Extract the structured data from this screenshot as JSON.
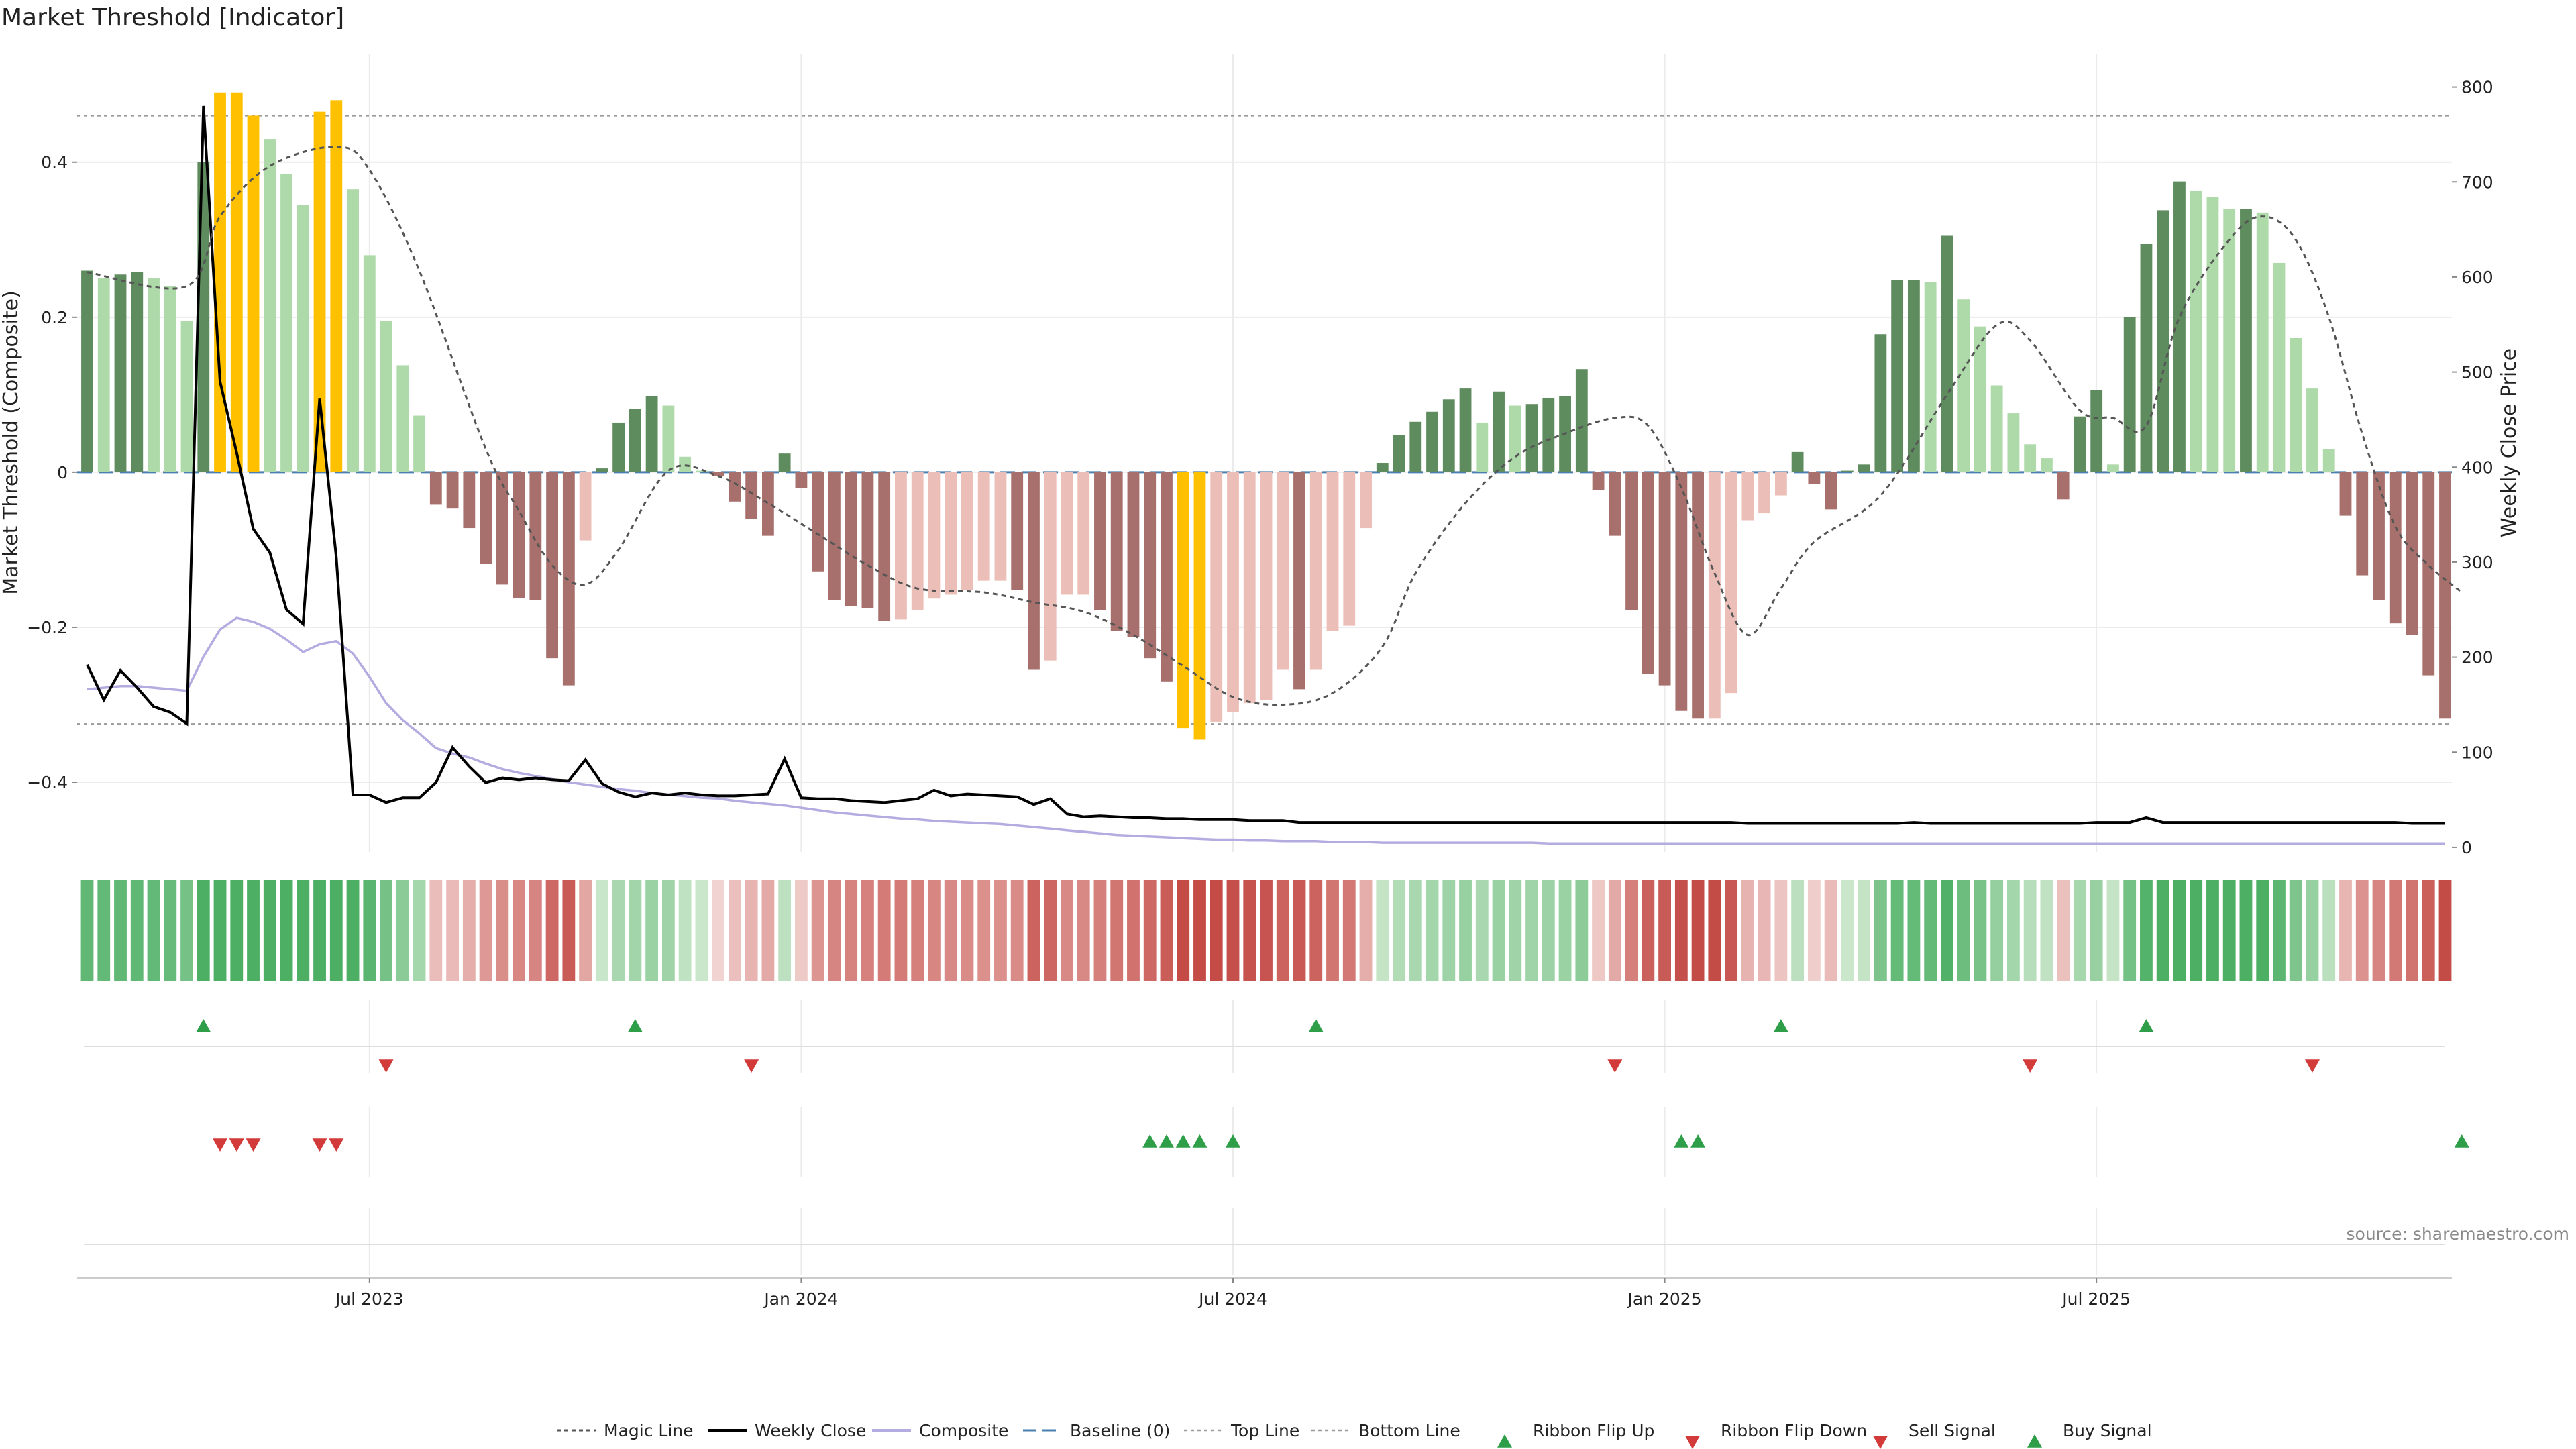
{
  "chart_data": {
    "type": "bar",
    "title": "Market Threshold [Indicator]",
    "ylabel_left": "Market Threshold (Composite)",
    "ylabel_right": "Weekly Close Price",
    "ylim_left": [
      -0.49,
      0.54
    ],
    "ylim_right": [
      -5,
      835
    ],
    "yticks_left": [
      -0.4,
      -0.2,
      0,
      0.2,
      0.4
    ],
    "yticks_left_labels": [
      "−0.4",
      "−0.2",
      "0",
      "0.2",
      "0.4"
    ],
    "yticks_right": [
      0,
      100,
      200,
      300,
      400,
      500,
      600,
      700,
      800
    ],
    "x_dates": [
      "2023-03-06",
      "2023-03-13",
      "2023-03-20",
      "2023-03-27",
      "2023-04-03",
      "2023-04-10",
      "2023-04-17",
      "2023-04-24",
      "2023-05-01",
      "2023-05-08",
      "2023-05-15",
      "2023-05-22",
      "2023-05-29",
      "2023-06-05",
      "2023-06-12",
      "2023-06-19",
      "2023-06-26",
      "2023-07-03",
      "2023-07-10",
      "2023-07-17",
      "2023-07-24",
      "2023-07-31",
      "2023-08-07",
      "2023-08-14",
      "2023-08-21",
      "2023-08-28",
      "2023-09-04",
      "2023-09-11",
      "2023-09-18",
      "2023-09-25",
      "2023-10-02",
      "2023-10-09",
      "2023-10-16",
      "2023-10-23",
      "2023-10-30",
      "2023-11-06",
      "2023-11-13",
      "2023-11-20",
      "2023-11-27",
      "2023-12-04",
      "2023-12-11",
      "2023-12-18",
      "2023-12-25",
      "2024-01-01",
      "2024-01-08",
      "2024-01-15",
      "2024-01-22",
      "2024-01-29",
      "2024-02-05",
      "2024-02-12",
      "2024-02-19",
      "2024-02-26",
      "2024-03-04",
      "2024-03-11",
      "2024-03-18",
      "2024-03-25",
      "2024-04-01",
      "2024-04-08",
      "2024-04-15",
      "2024-04-22",
      "2024-04-29",
      "2024-05-06",
      "2024-05-13",
      "2024-05-20",
      "2024-05-27",
      "2024-06-03",
      "2024-06-10",
      "2024-06-17",
      "2024-06-24",
      "2024-07-01",
      "2024-07-08",
      "2024-07-15",
      "2024-07-22",
      "2024-07-29",
      "2024-08-05",
      "2024-08-12",
      "2024-08-19",
      "2024-08-26",
      "2024-09-02",
      "2024-09-09",
      "2024-09-16",
      "2024-09-23",
      "2024-09-30",
      "2024-10-07",
      "2024-10-14",
      "2024-10-21",
      "2024-10-28",
      "2024-11-04",
      "2024-11-11",
      "2024-11-18",
      "2024-11-25",
      "2024-12-02",
      "2024-12-09",
      "2024-12-16",
      "2024-12-23",
      "2024-12-30",
      "2025-01-06",
      "2025-01-13",
      "2025-01-20",
      "2025-01-27",
      "2025-02-03",
      "2025-02-10",
      "2025-02-17",
      "2025-02-24",
      "2025-03-03",
      "2025-03-10",
      "2025-03-17",
      "2025-03-24",
      "2025-03-31",
      "2025-04-07",
      "2025-04-14",
      "2025-04-21",
      "2025-04-28",
      "2025-05-05",
      "2025-05-12",
      "2025-05-19",
      "2025-05-26",
      "2025-06-02",
      "2025-06-09",
      "2025-06-16",
      "2025-06-23",
      "2025-06-30",
      "2025-07-07",
      "2025-07-14",
      "2025-07-21",
      "2025-07-28",
      "2025-08-04",
      "2025-08-11",
      "2025-08-18",
      "2025-08-25",
      "2025-09-01",
      "2025-09-08",
      "2025-09-15",
      "2025-09-22",
      "2025-09-29",
      "2025-10-06",
      "2025-10-13",
      "2025-10-20",
      "2025-10-27",
      "2025-11-03",
      "2025-11-10"
    ],
    "composite_bars": [
      0.26,
      0.25,
      0.255,
      0.258,
      0.25,
      0.24,
      0.195,
      0.4,
      0.49,
      0.49,
      0.46,
      0.43,
      0.385,
      0.345,
      0.465,
      0.48,
      0.365,
      0.28,
      0.195,
      0.138,
      0.073,
      -0.042,
      -0.047,
      -0.072,
      -0.118,
      -0.145,
      -0.162,
      -0.165,
      -0.24,
      -0.275,
      -0.088,
      0.005,
      0.064,
      0.082,
      0.098,
      0.086,
      0.02,
      0.002,
      -0.005,
      -0.038,
      -0.06,
      -0.082,
      0.024,
      -0.02,
      -0.128,
      -0.165,
      -0.173,
      -0.175,
      -0.192,
      -0.19,
      -0.178,
      -0.163,
      -0.158,
      -0.152,
      -0.14,
      -0.14,
      -0.152,
      -0.255,
      -0.243,
      -0.158,
      -0.158,
      -0.178,
      -0.205,
      -0.213,
      -0.24,
      -0.27,
      -0.33,
      -0.345,
      -0.322,
      -0.31,
      -0.298,
      -0.294,
      -0.255,
      -0.28,
      -0.255,
      -0.205,
      -0.198,
      -0.072,
      0.012,
      0.048,
      0.065,
      0.078,
      0.094,
      0.108,
      0.064,
      0.104,
      0.086,
      0.088,
      0.096,
      0.098,
      0.133,
      -0.023,
      -0.082,
      -0.178,
      -0.26,
      -0.275,
      -0.308,
      -0.318,
      -0.318,
      -0.285,
      -0.062,
      -0.053,
      -0.03,
      0.026,
      -0.015,
      -0.048,
      0.002,
      0.01,
      0.178,
      0.248,
      0.248,
      0.245,
      0.305,
      0.223,
      0.188,
      0.112,
      0.076,
      0.036,
      0.018,
      -0.035,
      0.072,
      0.106,
      0.01,
      0.2,
      0.295,
      0.338,
      0.375,
      0.363,
      0.355,
      0.34,
      0.34,
      0.335,
      0.27,
      0.173,
      0.108,
      0.03,
      -0.056,
      -0.133,
      -0.165,
      -0.195,
      -0.21,
      -0.262,
      -0.318
    ],
    "weekly_close": [
      192,
      155,
      186,
      168,
      148,
      142,
      130,
      780,
      490,
      415,
      335,
      310,
      250,
      235,
      472,
      305,
      55,
      55,
      47,
      52,
      52,
      68,
      105,
      85,
      68,
      73,
      71,
      73,
      71,
      70,
      92,
      67,
      58,
      53,
      57,
      55,
      57,
      55,
      54,
      54,
      55,
      56,
      93,
      52,
      51,
      51,
      49,
      48,
      47,
      49,
      51,
      60,
      54,
      56,
      55,
      54,
      53,
      45,
      51,
      35,
      32,
      33,
      32,
      31,
      31,
      30,
      30,
      29,
      29,
      29,
      28,
      28,
      28,
      26,
      26,
      26,
      26,
      26,
      26,
      26,
      26,
      26,
      26,
      26,
      26,
      26,
      26,
      26,
      26,
      26,
      26,
      26,
      26,
      26,
      26,
      26,
      26,
      26,
      26,
      26,
      25,
      25,
      25,
      25,
      25,
      25,
      25,
      25,
      25,
      25,
      26,
      25,
      25,
      25,
      25,
      25,
      25,
      25,
      25,
      25,
      25,
      26,
      26,
      26,
      31,
      26,
      26,
      26,
      26,
      26,
      26,
      26,
      26,
      26,
      26,
      26,
      26,
      26,
      26,
      26,
      25,
      25,
      25
    ],
    "composite_line": [
      -0.28,
      -0.278,
      -0.276,
      -0.276,
      -0.278,
      -0.28,
      -0.282,
      -0.238,
      -0.203,
      -0.188,
      -0.193,
      -0.202,
      -0.216,
      -0.232,
      -0.222,
      -0.218,
      -0.234,
      -0.264,
      -0.298,
      -0.32,
      -0.337,
      -0.356,
      -0.363,
      -0.368,
      -0.376,
      -0.383,
      -0.388,
      -0.392,
      -0.396,
      -0.4,
      -0.403,
      -0.406,
      -0.409,
      -0.411,
      -0.414,
      -0.416,
      -0.418,
      -0.42,
      -0.421,
      -0.424,
      -0.426,
      -0.428,
      -0.43,
      -0.433,
      -0.436,
      -0.439,
      -0.441,
      -0.443,
      -0.445,
      -0.447,
      -0.448,
      -0.45,
      -0.451,
      -0.452,
      -0.453,
      -0.454,
      -0.456,
      -0.458,
      -0.46,
      -0.462,
      -0.464,
      -0.466,
      -0.468,
      -0.469,
      -0.47,
      -0.471,
      -0.472,
      -0.473,
      -0.474,
      -0.474,
      -0.475,
      -0.475,
      -0.476,
      -0.476,
      -0.476,
      -0.477,
      -0.477,
      -0.477,
      -0.478,
      -0.478,
      -0.478,
      -0.478,
      -0.478,
      -0.478,
      -0.478,
      -0.478,
      -0.478,
      -0.478,
      -0.479,
      -0.479,
      -0.479,
      -0.479,
      -0.479,
      -0.479,
      -0.479,
      -0.479,
      -0.479,
      -0.479,
      -0.479,
      -0.479,
      -0.479,
      -0.479,
      -0.479,
      -0.479,
      -0.479,
      -0.479,
      -0.479,
      -0.479,
      -0.479,
      -0.479,
      -0.479,
      -0.479,
      -0.479,
      -0.479,
      -0.479,
      -0.479,
      -0.479,
      -0.479,
      -0.479,
      -0.479,
      -0.479,
      -0.479,
      -0.479,
      -0.479,
      -0.479,
      -0.479,
      -0.479,
      -0.479,
      -0.479,
      -0.479,
      -0.479,
      -0.479,
      -0.479,
      -0.479,
      -0.479,
      -0.479,
      -0.479,
      -0.479,
      -0.479,
      -0.479,
      -0.479,
      -0.479,
      -0.479
    ],
    "magic_line_points": [
      [
        0,
        0.258
      ],
      [
        6,
        0.24
      ],
      [
        8,
        0.33
      ],
      [
        11,
        0.395
      ],
      [
        15,
        0.42
      ],
      [
        17,
        0.39
      ],
      [
        20,
        0.26
      ],
      [
        24,
        0.03
      ],
      [
        26,
        -0.05
      ],
      [
        28,
        -0.12
      ],
      [
        30,
        -0.145
      ],
      [
        32,
        -0.1
      ],
      [
        35,
        0.002
      ],
      [
        38,
        -0.005
      ],
      [
        41,
        -0.04
      ],
      [
        44,
        -0.08
      ],
      [
        47,
        -0.12
      ],
      [
        50,
        -0.15
      ],
      [
        54,
        -0.155
      ],
      [
        57,
        -0.168
      ],
      [
        60,
        -0.18
      ],
      [
        63,
        -0.21
      ],
      [
        66,
        -0.25
      ],
      [
        69,
        -0.29
      ],
      [
        72,
        -0.3
      ],
      [
        75,
        -0.285
      ],
      [
        78,
        -0.225
      ],
      [
        80,
        -0.13
      ],
      [
        83,
        -0.04
      ],
      [
        86,
        0.02
      ],
      [
        89,
        0.05
      ],
      [
        92,
        0.07
      ],
      [
        94,
        0.06
      ],
      [
        96,
        -0.02
      ],
      [
        98,
        -0.13
      ],
      [
        100,
        -0.21
      ],
      [
        102,
        -0.15
      ],
      [
        104,
        -0.09
      ],
      [
        108,
        -0.03
      ],
      [
        112,
        0.1
      ],
      [
        115,
        0.19
      ],
      [
        117,
        0.17
      ],
      [
        120,
        0.08
      ],
      [
        122,
        0.07
      ],
      [
        124,
        0.06
      ],
      [
        126,
        0.2
      ],
      [
        129,
        0.3
      ],
      [
        131,
        0.33
      ],
      [
        133,
        0.3
      ],
      [
        135,
        0.2
      ],
      [
        137,
        0.05
      ],
      [
        139,
        -0.07
      ],
      [
        141,
        -0.12
      ],
      [
        143,
        -0.155
      ]
    ],
    "top_line": 0.46,
    "bottom_line": -0.325,
    "baseline": 0,
    "ribbon_flip_up_idx": [
      7,
      33,
      74,
      102,
      124
    ],
    "ribbon_flip_down_idx": [
      18,
      40,
      92,
      117,
      134
    ],
    "sell_signal_idx": [
      8,
      9,
      10,
      14,
      15
    ],
    "buy_signal_idx": [
      64,
      65,
      66,
      67,
      69,
      96,
      97,
      143
    ],
    "x_tick_labels": [
      "Jul 2023",
      "Jan 2024",
      "Jul 2024",
      "Jan 2025",
      "Jul 2025"
    ],
    "x_tick_idx": [
      17,
      43,
      69,
      95,
      121
    ],
    "legend": [
      "Magic Line",
      "Weekly Close",
      "Composite",
      "Baseline (0)",
      "Top Line",
      "Bottom Line",
      "Ribbon Flip Up",
      "Ribbon Flip Down",
      "Sell Signal",
      "Buy Signal"
    ],
    "legend_placement": "bottom-center",
    "source": "source: sharemaestro.com",
    "colors": {
      "pos_strong": "#5e8c5e",
      "pos_light": "#aed9a9",
      "neg_strong": "#a8706c",
      "neg_light": "#ecbeb8",
      "extreme": "#ffc000",
      "weekly_close": "#000000",
      "composite": "#b3ace0",
      "magic": "#555555",
      "baseline": "#4a7fb0",
      "ribbon_up": "#2e9e49",
      "ribbon_down": "#d33a3a"
    }
  }
}
